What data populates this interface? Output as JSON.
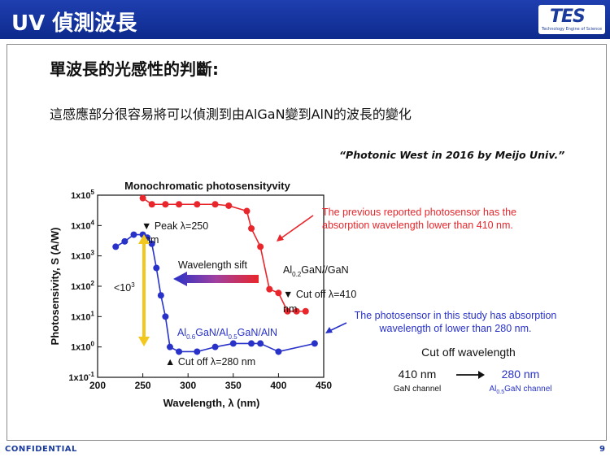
{
  "header": {
    "title": "UV 偵測波長",
    "logo": "TES",
    "logo_sub": "Technology Engine of Science"
  },
  "subtitle": "單波長的光感性的判斷:",
  "description": "這感應部分很容易將可以偵測到由AlGaN變到AlN的波長的變化",
  "citation": "“Photonic West in 2016 by Meijo Univ.”",
  "chart_data": {
    "type": "line",
    "title": "Monochromatic photosensityvity",
    "xlabel": "Wavelength, λ (nm)",
    "ylabel": "Photosensivity, S (A/W)",
    "xlim": [
      200,
      450
    ],
    "ylim": [
      0.1,
      100000
    ],
    "y_scale": "log",
    "x_ticks": [
      "200",
      "250",
      "300",
      "350",
      "400",
      "450"
    ],
    "y_ticks": [
      {
        "base": "1x10",
        "exp": "5"
      },
      {
        "base": "1x10",
        "exp": "4"
      },
      {
        "base": "1x10",
        "exp": "3"
      },
      {
        "base": "1x10",
        "exp": "2"
      },
      {
        "base": "1x10",
        "exp": "1"
      },
      {
        "base": "1x10",
        "exp": "0"
      },
      {
        "base": "1x10",
        "exp": "-1"
      }
    ],
    "series": [
      {
        "color": "#e8262b",
        "x": [
          250,
          260,
          275,
          290,
          310,
          330,
          345,
          365,
          370,
          380,
          390,
          400,
          410,
          420,
          430
        ],
        "y": [
          80000,
          50000,
          50000,
          50000,
          50000,
          50000,
          45000,
          30000,
          8000,
          2000,
          80,
          60,
          15,
          15,
          15
        ]
      },
      {
        "color": "#2832c8",
        "x": [
          220,
          230,
          240,
          250,
          255,
          260,
          265,
          270,
          275,
          280,
          290,
          310,
          330,
          350,
          370,
          380,
          400,
          440
        ],
        "y": [
          2000,
          3000,
          5000,
          5000,
          4000,
          2500,
          400,
          50,
          10,
          1,
          0.7,
          0.7,
          1,
          1.3,
          1.3,
          1.3,
          0.7,
          1.3
        ]
      }
    ],
    "annotations": {
      "peak": "▼ Peak λ=250",
      "peak_unit": "nm",
      "shift": "Wavelength sift",
      "ratio": "<10",
      "ratio_exp": "3",
      "red_material": {
        "a": "Al",
        "a_sub": "0.2",
        "b": "GaN//GaN"
      },
      "red_cutoff": "▼ Cut off λ=410",
      "red_cutoff_unit": "nm",
      "blue_material": {
        "a": "Al",
        "a_sub": "0.6",
        "b": "GaN/Al",
        "b_sub": "0.5",
        "c": "GaN/AlN"
      },
      "blue_cutoff": "▲ Cut off λ=280 nm"
    }
  },
  "callouts": {
    "previous_line1": "The previous reported photosensor has the",
    "previous_line2": "absorption wavelength lower than 410 nm.",
    "study_line1": "The photosensor in this study has absorption",
    "study_line2": "wavelength of lower than 280 nm."
  },
  "cutoff_summary": {
    "title": "Cut off wavelength",
    "left_value": "410 nm",
    "left_label": "GaN channel",
    "right_value": "280 nm",
    "right_label_a": "Al",
    "right_label_sub": "0.5",
    "right_label_b": "GaN channel"
  },
  "footer": {
    "confidential": "CONFIDENTIAL",
    "page": "9"
  },
  "colors": {
    "header": "#1f3fb0",
    "red_series": "#e8262b",
    "blue_series": "#2832c8",
    "arrow_yellow": "#f2c81e"
  }
}
